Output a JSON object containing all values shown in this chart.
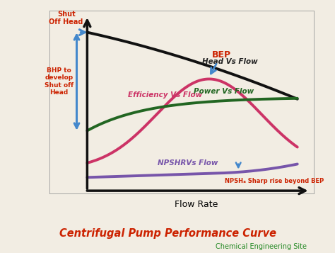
{
  "title": "Centrifugal Pump Performance Curve",
  "subtitle": "Chemical Engineering Site",
  "xlabel": "Flow Rate",
  "bg_color": "#f2ede3",
  "title_color": "#cc2200",
  "subtitle_color": "#228822",
  "curves": {
    "head": {
      "label": "Head Vs Flow",
      "color": "#111111",
      "lw": 2.8
    },
    "efficiency": {
      "label": "Efficiency Vs Flow",
      "color": "#cc3366",
      "lw": 2.8
    },
    "power": {
      "label": "Power Vs Flow",
      "color": "#226622",
      "lw": 2.8
    },
    "npshr": {
      "label": "NPSHRVs Flow",
      "color": "#7755aa",
      "lw": 2.8
    }
  },
  "annotations": {
    "shut_off_head": {
      "text": "Shut\nOff Head",
      "color": "#cc2200"
    },
    "bhp_label": {
      "text": "BHP to\ndevelop\nShut off\nHead",
      "color": "#cc2200"
    },
    "bep_label": {
      "text": "BEP",
      "color": "#cc2200"
    },
    "npsha_label": {
      "text": "NPSHₐ Sharp rise beyond BEP",
      "color": "#cc2200"
    }
  },
  "axis_color": "#111111",
  "arrow_color": "#4488cc"
}
